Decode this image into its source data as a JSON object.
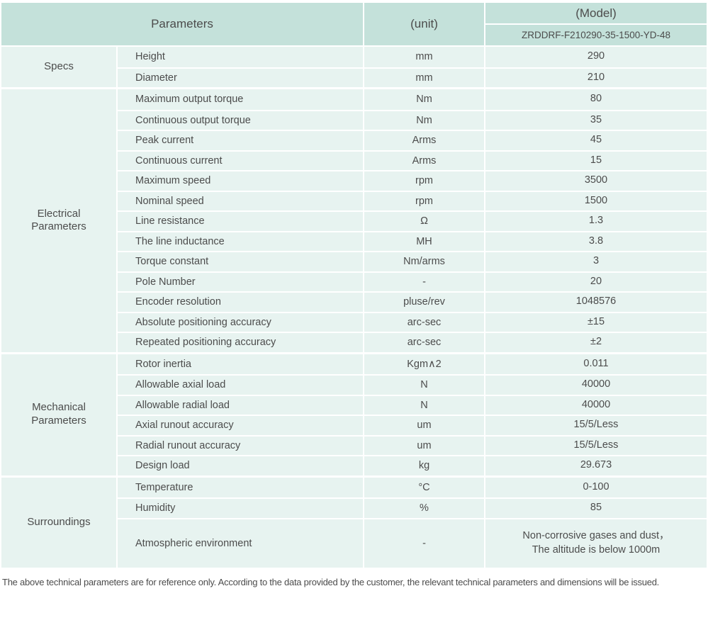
{
  "colors": {
    "header_bg": "#c4e1da",
    "cell_bg": "#e7f3f0",
    "divider": "#ffffff",
    "text": "#4c4c4c"
  },
  "header": {
    "parameters_label": "Parameters",
    "unit_label": "(unit)",
    "model_label": "(Model)",
    "model_value": "ZRDDRF-F210290-35-1500-YD-48"
  },
  "sections": [
    {
      "group": "Specs",
      "rows": [
        {
          "name": "Height",
          "unit": "mm",
          "value": "290"
        },
        {
          "name": "Diameter",
          "unit": "mm",
          "value": "210"
        }
      ]
    },
    {
      "group": "Electrical\nParameters",
      "rows": [
        {
          "name": "Maximum output torque",
          "unit": "Nm",
          "value": "80"
        },
        {
          "name": "Continuous output torque",
          "unit": "Nm",
          "value": "35"
        },
        {
          "name": "Peak current",
          "unit": "Arms",
          "value": "45"
        },
        {
          "name": "Continuous current",
          "unit": "Arms",
          "value": "15"
        },
        {
          "name": "Maximum speed",
          "unit": "rpm",
          "value": "3500"
        },
        {
          "name": "Nominal speed",
          "unit": "rpm",
          "value": "1500"
        },
        {
          "name": "Line resistance",
          "unit": "Ω",
          "value": "1.3"
        },
        {
          "name": "The line inductance",
          "unit": "MH",
          "value": "3.8"
        },
        {
          "name": "Torque constant",
          "unit": "Nm/arms",
          "value": "3"
        },
        {
          "name": "Pole Number",
          "unit": "-",
          "value": "20"
        },
        {
          "name": "Encoder resolution",
          "unit": "pluse/rev",
          "value": "1048576"
        },
        {
          "name": "Absolute positioning accuracy",
          "unit": "arc-sec",
          "value": "±15"
        },
        {
          "name": "Repeated positioning accuracy",
          "unit": "arc-sec",
          "value": "±2"
        }
      ]
    },
    {
      "group": "Mechanical\nParameters",
      "rows": [
        {
          "name": "Rotor inertia",
          "unit": "Kgm∧2",
          "value": "0.011"
        },
        {
          "name": "Allowable axial load",
          "unit": "N",
          "value": "40000"
        },
        {
          "name": "Allowable radial load",
          "unit": "N",
          "value": "40000"
        },
        {
          "name": "Axial runout accuracy",
          "unit": "um",
          "value": "15/5/Less"
        },
        {
          "name": "Radial runout accuracy",
          "unit": "um",
          "value": "15/5/Less"
        },
        {
          "name": "Design load",
          "unit": "kg",
          "value": "29.673"
        }
      ]
    },
    {
      "group": "Surroundings",
      "rows": [
        {
          "name": "Temperature",
          "unit": "°C",
          "value": "0-100"
        },
        {
          "name": "Humidity",
          "unit": "%",
          "value": "85"
        },
        {
          "name": "Atmospheric environment",
          "unit": "-",
          "value": "Non-corrosive gases and dust，\nThe altitude is below 1000m",
          "tall": true
        }
      ]
    }
  ],
  "footer": {
    "note": "The above technical parameters are for reference only. According to the data provided by the customer, the relevant technical parameters and dimensions will be issued."
  }
}
